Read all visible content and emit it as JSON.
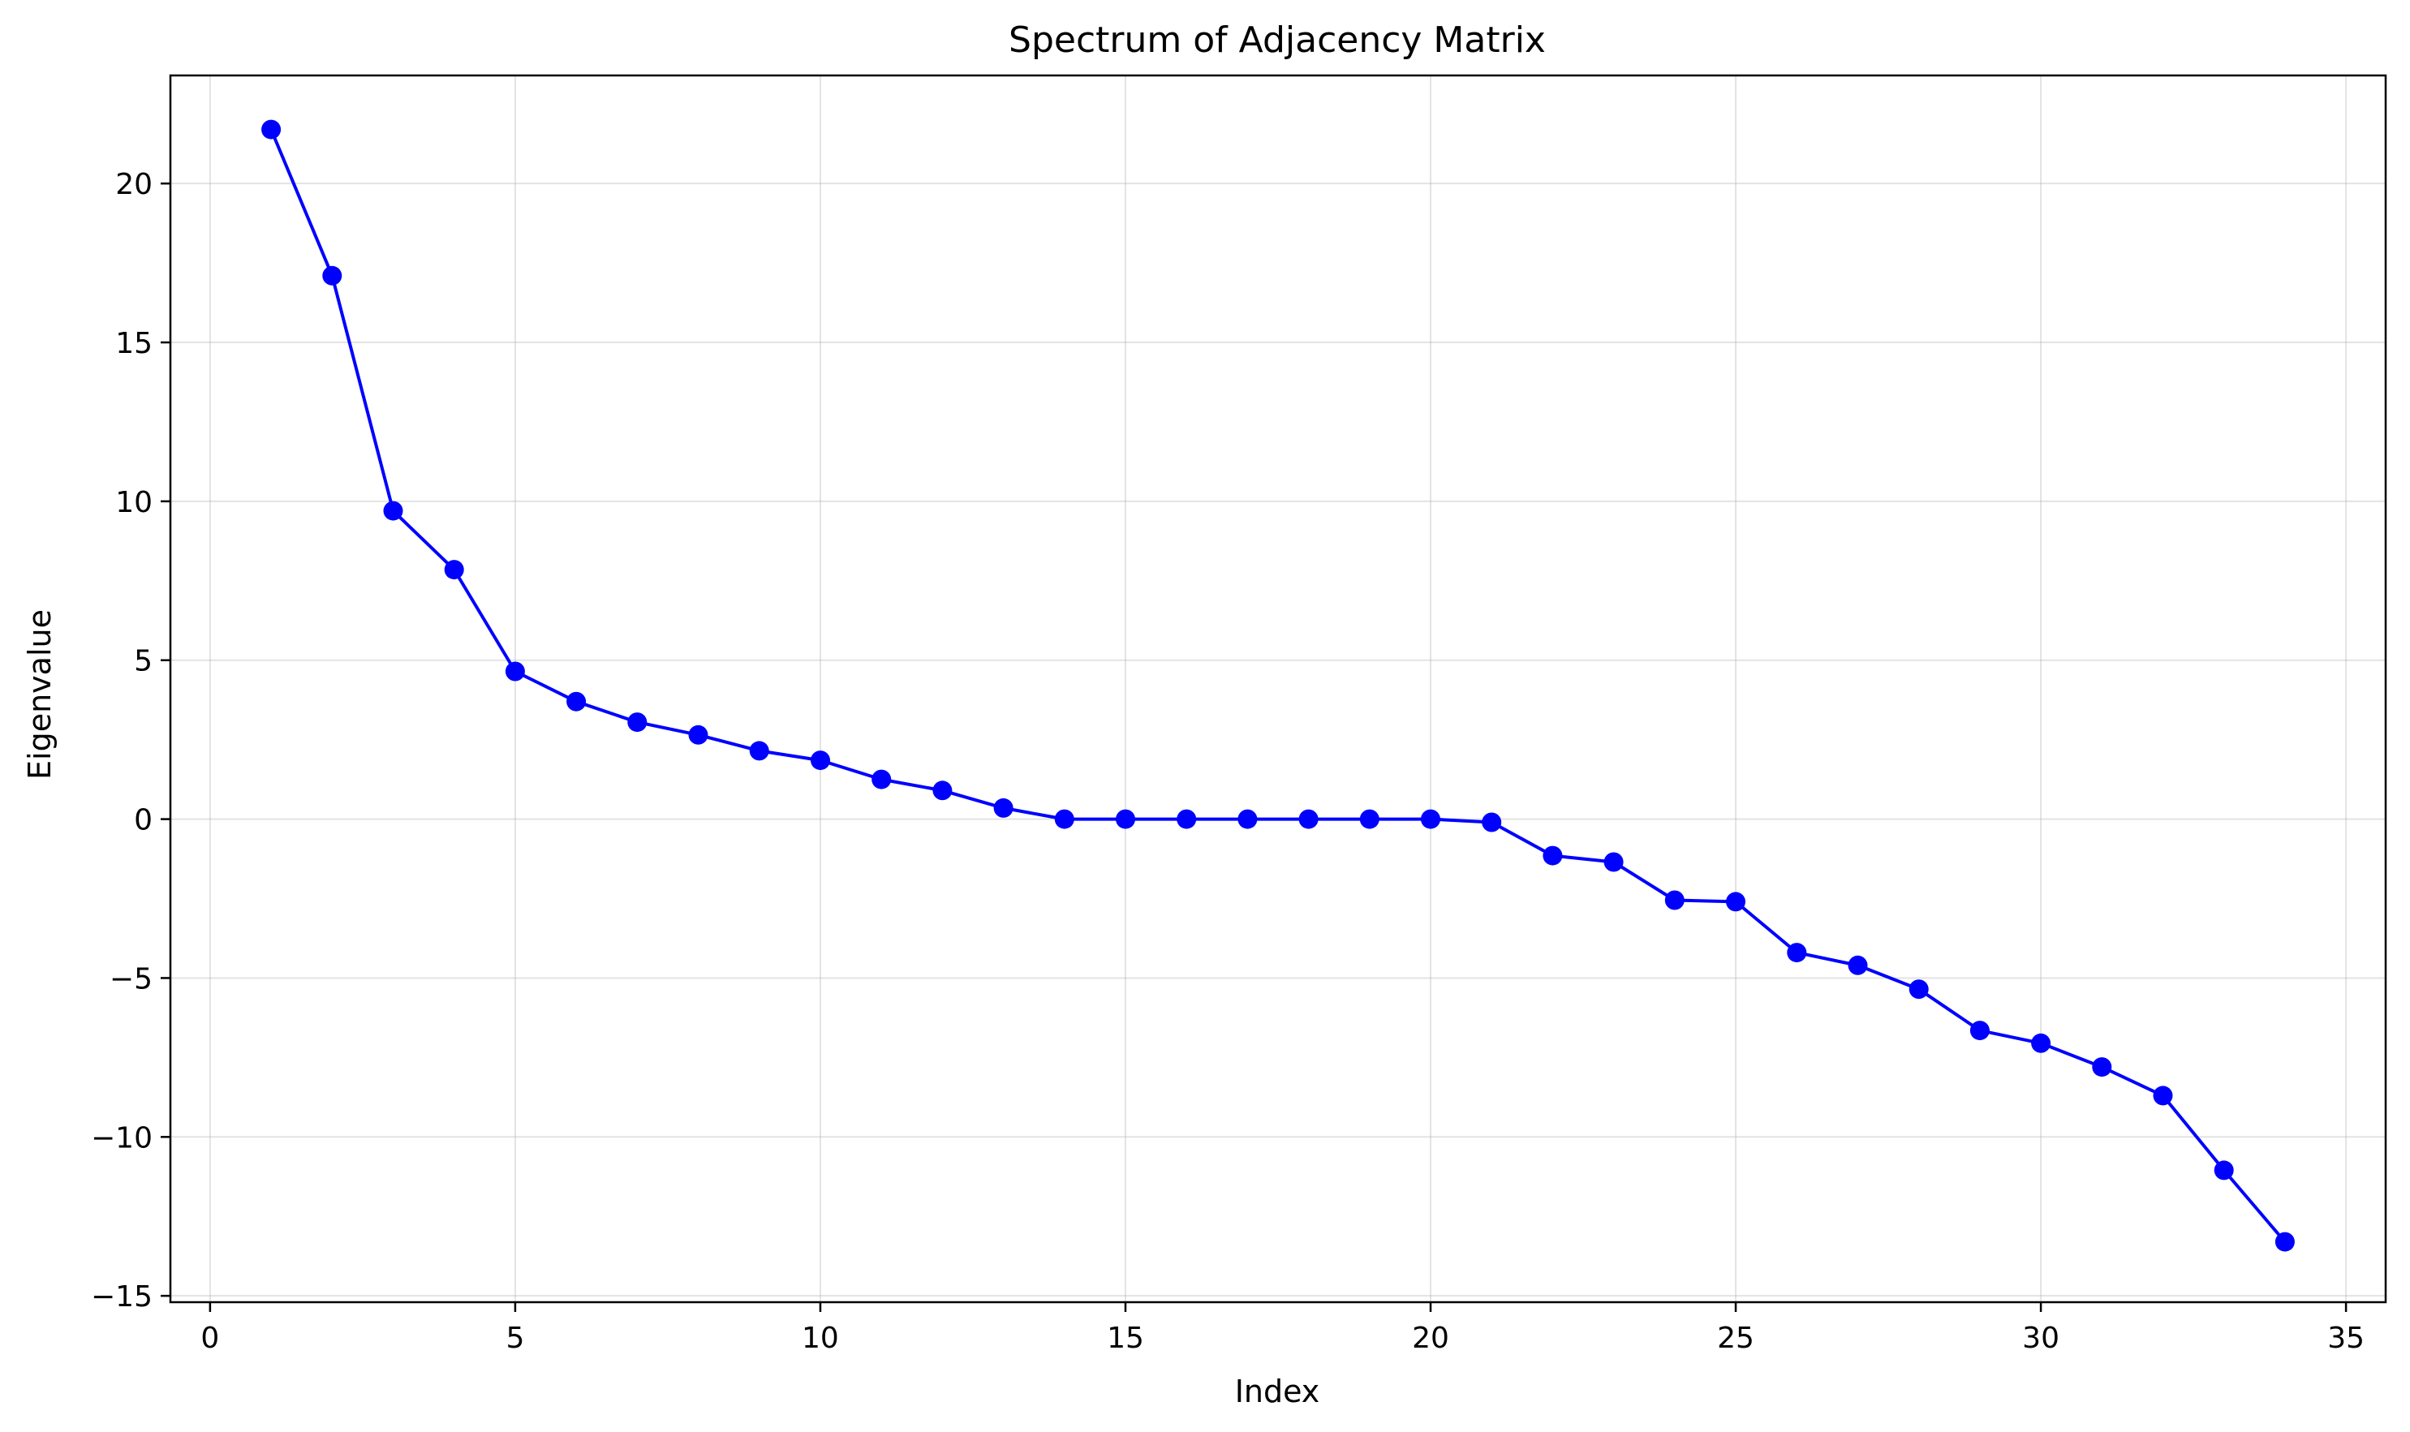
{
  "chart_data": {
    "type": "line",
    "title": "Spectrum of Adjacency Matrix",
    "xlabel": "Index",
    "ylabel": "Eigenvalue",
    "xlim": [
      -0.65,
      35.65
    ],
    "ylim": [
      -15.2,
      23.4
    ],
    "xticks": [
      0,
      5,
      10,
      15,
      20,
      25,
      30,
      35
    ],
    "yticks": [
      -15,
      -10,
      -5,
      0,
      5,
      10,
      15,
      20
    ],
    "grid": true,
    "line_color": "#0000ff",
    "marker": "circle",
    "series": [
      {
        "x": [
          1,
          2,
          3,
          4,
          5,
          6,
          7,
          8,
          9,
          10,
          11,
          12,
          13,
          14,
          15,
          16,
          17,
          18,
          19,
          20,
          21,
          22,
          23,
          24,
          25,
          26,
          27,
          28,
          29,
          30,
          31,
          32,
          33,
          34
        ],
        "values": [
          21.7,
          17.1,
          9.7,
          7.85,
          4.65,
          3.7,
          3.05,
          2.65,
          2.15,
          1.85,
          1.25,
          0.9,
          0.35,
          0.0,
          0.0,
          0.0,
          0.0,
          0.0,
          0.0,
          0.0,
          -0.1,
          -1.15,
          -1.35,
          -2.55,
          -2.6,
          -4.2,
          -4.6,
          -5.35,
          -6.65,
          -7.05,
          -7.8,
          -8.7,
          -11.05,
          -13.3
        ]
      }
    ]
  }
}
